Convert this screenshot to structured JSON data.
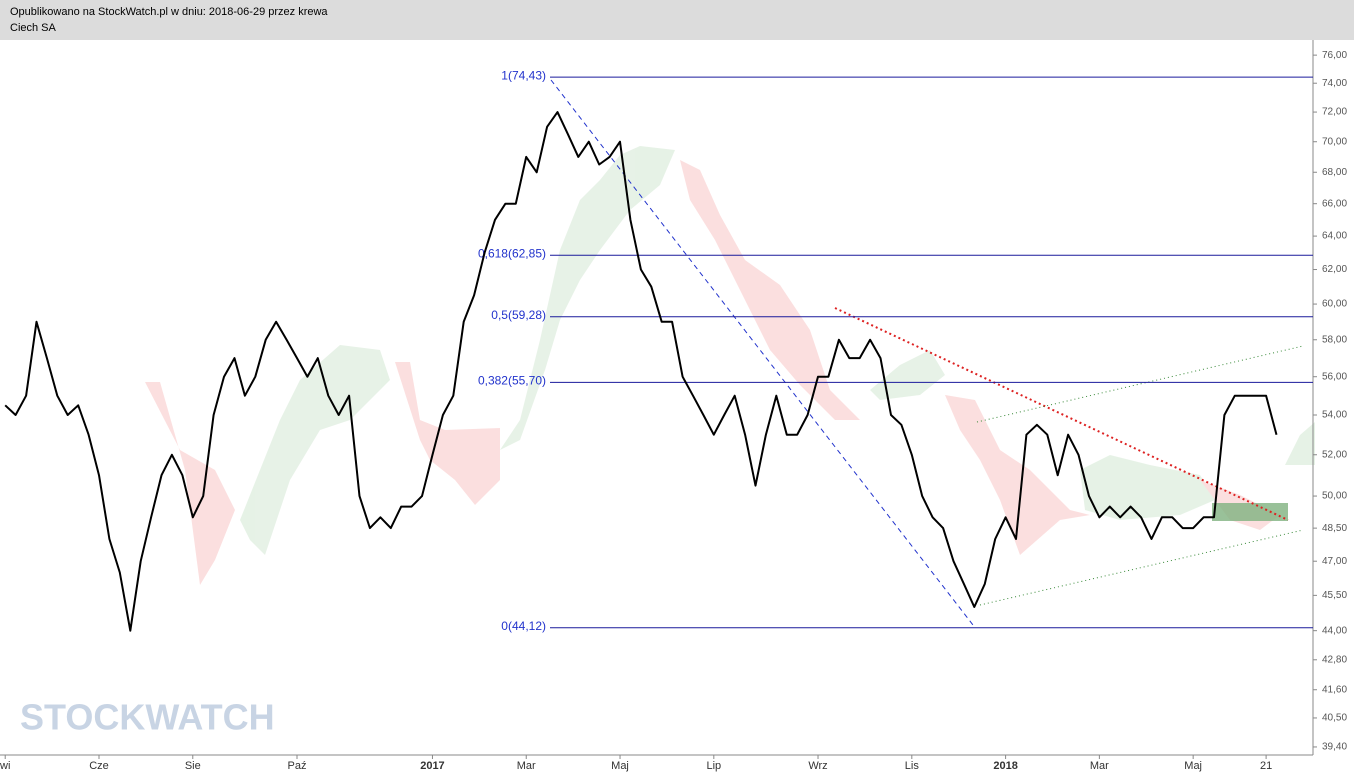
{
  "header": {
    "published": "Opublikowano na StockWatch.pl w dniu: 2018-06-29 przez krewa",
    "instrument": "Ciech SA"
  },
  "watermark": "STOCKWATCH",
  "chart_data": {
    "type": "line",
    "color": "#000000",
    "log": true,
    "categories": [
      "wi",
      null,
      null,
      null,
      null,
      null,
      null,
      null,
      null,
      "Cze",
      null,
      null,
      null,
      null,
      null,
      null,
      null,
      null,
      "Sie",
      null,
      null,
      null,
      null,
      null,
      null,
      null,
      null,
      null,
      "Paź",
      null,
      null,
      null,
      null,
      null,
      null,
      null,
      null,
      null,
      null,
      null,
      null,
      "2017",
      null,
      null,
      null,
      null,
      null,
      null,
      null,
      null,
      "Mar",
      null,
      null,
      null,
      null,
      null,
      null,
      null,
      null,
      "Maj",
      null,
      null,
      null,
      null,
      null,
      null,
      null,
      null,
      "Lip",
      null,
      null,
      null,
      null,
      null,
      null,
      null,
      null,
      null,
      "Wrz",
      null,
      null,
      null,
      null,
      null,
      null,
      null,
      null,
      "Lis",
      null,
      null,
      null,
      null,
      null,
      null,
      null,
      null,
      "2018",
      null,
      null,
      null,
      null,
      null,
      null,
      null,
      null,
      "Mar",
      null,
      null,
      null,
      null,
      null,
      null,
      null,
      null,
      "Maj",
      null,
      null,
      null,
      null,
      null,
      null,
      "21",
      null,
      null,
      null,
      null
    ],
    "values": [
      54.5,
      54,
      55,
      59,
      57,
      55,
      54,
      54.5,
      53,
      51,
      48,
      46.5,
      44,
      47,
      49,
      51,
      52,
      51,
      49,
      50,
      54,
      56,
      57,
      55,
      56,
      58,
      59,
      58,
      57,
      56,
      57,
      55,
      54,
      55,
      50,
      48.5,
      49,
      48.5,
      49.5,
      49.5,
      50,
      52,
      54,
      55,
      59,
      60.5,
      63,
      65,
      66,
      66,
      69,
      68,
      71,
      72,
      70.5,
      69,
      70,
      68.5,
      69,
      70,
      65,
      62,
      61,
      59,
      59,
      56,
      55,
      54,
      53,
      54,
      55,
      53,
      50.5,
      53,
      55,
      53,
      53,
      54,
      56,
      56,
      58,
      57,
      57,
      58,
      57,
      54,
      53.5,
      52,
      50,
      49,
      48.5,
      47,
      46,
      45,
      46,
      48,
      49,
      48,
      53,
      53.5,
      53,
      51,
      53,
      52,
      50,
      49,
      49.5,
      49,
      49.5,
      49,
      48,
      49,
      49,
      48.5,
      48.5,
      49,
      49,
      54,
      55,
      55,
      55,
      55,
      53,
      null,
      null,
      null
    ],
    "ylim": [
      39.1,
      77.1
    ],
    "yticks": [
      {
        "value": 76,
        "label": "76,00"
      },
      {
        "value": 74,
        "label": "74,00"
      },
      {
        "value": 72,
        "label": "72,00"
      },
      {
        "value": 70,
        "label": "70,00"
      },
      {
        "value": 68,
        "label": "68,00"
      },
      {
        "value": 66,
        "label": "66,00"
      },
      {
        "value": 64,
        "label": "64,00"
      },
      {
        "value": 62,
        "label": "62,00"
      },
      {
        "value": 60,
        "label": "60,00"
      },
      {
        "value": 58,
        "label": "58,00"
      },
      {
        "value": 56,
        "label": "56,00"
      },
      {
        "value": 54,
        "label": "54,00"
      },
      {
        "value": 52,
        "label": "52,00"
      },
      {
        "value": 50,
        "label": "50,00"
      },
      {
        "value": 48.5,
        "label": "48,50"
      },
      {
        "value": 47,
        "label": "47,00"
      },
      {
        "value": 45.5,
        "label": "45,50"
      },
      {
        "value": 44,
        "label": "44,00"
      },
      {
        "value": 42.8,
        "label": "42,80"
      },
      {
        "value": 41.6,
        "label": "41,60"
      },
      {
        "value": 40.5,
        "label": "40,50"
      },
      {
        "value": 39.4,
        "label": "39,40"
      }
    ],
    "levels": [
      {
        "label": "1(74,43)",
        "value": 74.43
      },
      {
        "label": "0,618(62,85)",
        "value": 62.85
      },
      {
        "label": "0,5(59,28)",
        "value": 59.28
      },
      {
        "label": "0,382(55,70)",
        "value": 55.7
      },
      {
        "label": "0(44,12)",
        "value": 44.12
      }
    ],
    "level_color": "#1a1a9c"
  }
}
